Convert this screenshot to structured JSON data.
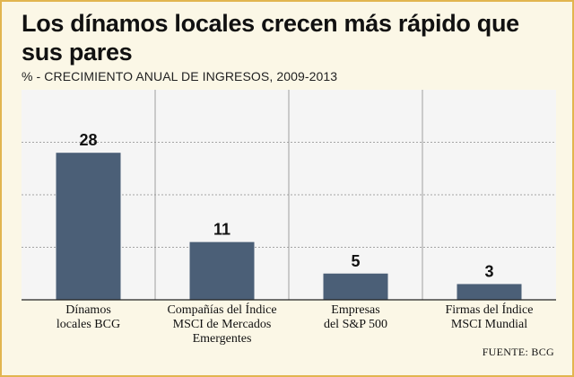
{
  "chart_data": {
    "type": "bar",
    "title": "Los dínamos locales crecen más rápido que sus pares",
    "subtitle": "% - CRECIMIENTO ANUAL DE INGRESOS, 2009-2013",
    "categories": [
      "Dínamos locales BCG",
      "Compañías del Índice MSCI de Mercados Emergentes",
      "Empresas del S&P 500",
      "Firmas del Índice MSCI Mundial"
    ],
    "category_lines": [
      [
        "Dínamos",
        "locales BCG"
      ],
      [
        "Compañías del Índice",
        "MSCI de Mercados",
        "Emergentes"
      ],
      [
        "Empresas",
        "del S&P 500"
      ],
      [
        "Firmas del Índice",
        "MSCI Mundial"
      ]
    ],
    "values": [
      28,
      11,
      5,
      3
    ],
    "ylim": [
      0,
      40
    ],
    "grid": true,
    "xlabel": "",
    "ylabel": "",
    "source": "FUENTE: BCG",
    "colors": {
      "bar": "#4b5f77",
      "border": "#e2b54f",
      "background": "#fbf7e6",
      "plot": "#f5f5f5"
    }
  }
}
